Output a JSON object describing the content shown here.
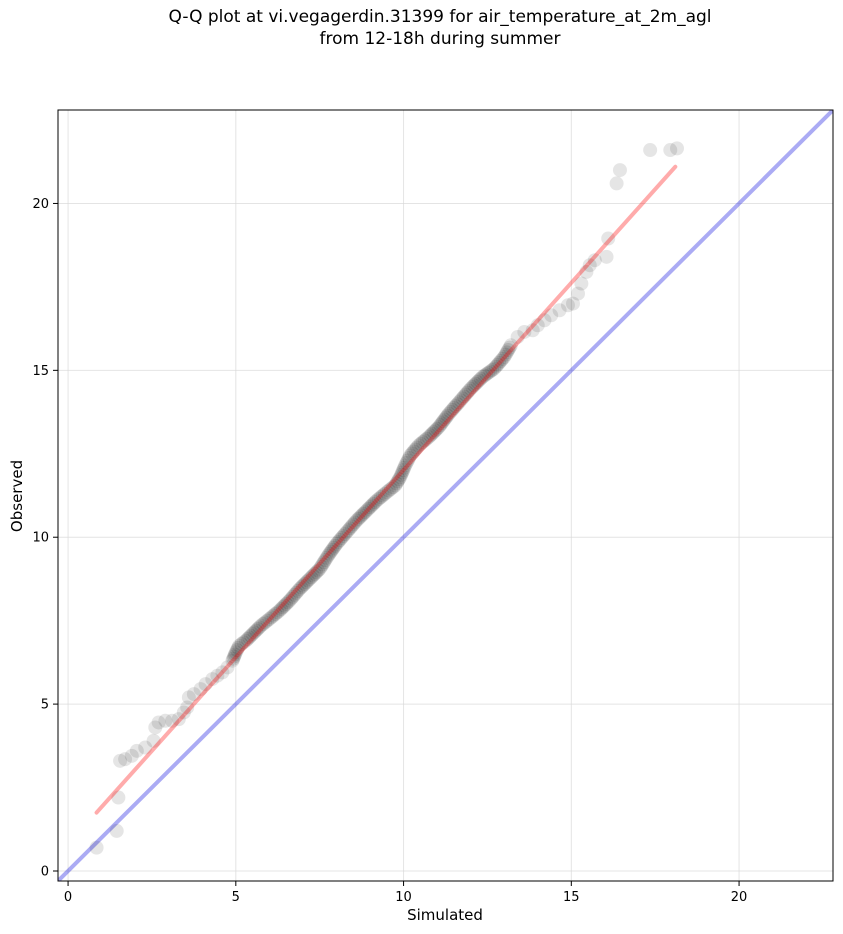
{
  "title": {
    "line1": "Q-Q plot at vi.vegagerdin.31399 for air_temperature_at_2m_agl",
    "line2": "from 12-18h during summer"
  },
  "colors": {
    "points": "#000000",
    "fit_line": "#ff0000",
    "identity_line": "#0000dd",
    "grid": "#d9d9d9",
    "axes": "#000000"
  },
  "chart_data": {
    "type": "scatter",
    "title": "Q-Q plot at vi.vegagerdin.31399 for air_temperature_at_2m_agl\nfrom 12-18h during summer",
    "xlabel": "Simulated",
    "ylabel": "Observed",
    "xlim": [
      -0.3,
      22.8
    ],
    "ylim": [
      -0.3,
      22.8
    ],
    "xticks": [
      0,
      5,
      10,
      15,
      20
    ],
    "yticks": [
      0,
      5,
      10,
      15,
      20
    ],
    "xtick_labels": [
      "0",
      "5",
      "10",
      "15",
      "20"
    ],
    "ytick_labels": [
      "0",
      "5",
      "10",
      "15",
      "20"
    ],
    "grid": true,
    "legend": "none",
    "series": [
      {
        "kind": "scatter",
        "points": [
          [
            0.85,
            0.7
          ],
          [
            1.45,
            1.2
          ],
          [
            1.5,
            2.2
          ],
          [
            1.55,
            3.3
          ],
          [
            1.7,
            3.35
          ],
          [
            1.9,
            3.45
          ],
          [
            2.05,
            3.6
          ],
          [
            2.3,
            3.7
          ],
          [
            2.55,
            3.9
          ],
          [
            2.6,
            4.3
          ],
          [
            2.7,
            4.45
          ],
          [
            2.9,
            4.5
          ],
          [
            3.1,
            4.5
          ],
          [
            3.3,
            4.55
          ],
          [
            3.45,
            4.75
          ],
          [
            3.55,
            4.9
          ],
          [
            3.6,
            5.2
          ],
          [
            3.75,
            5.3
          ],
          [
            3.95,
            5.45
          ],
          [
            4.1,
            5.6
          ],
          [
            4.3,
            5.75
          ],
          [
            4.45,
            5.85
          ],
          [
            4.6,
            5.95
          ],
          [
            4.75,
            6.1
          ],
          [
            4.9,
            6.3
          ],
          [
            5.0,
            6.55
          ],
          [
            5.1,
            6.75
          ],
          [
            5.3,
            6.9
          ],
          [
            5.5,
            7.1
          ],
          [
            5.75,
            7.35
          ],
          [
            6.0,
            7.55
          ],
          [
            6.3,
            7.8
          ],
          [
            6.6,
            8.1
          ],
          [
            6.9,
            8.45
          ],
          [
            7.2,
            8.75
          ],
          [
            7.5,
            9.05
          ],
          [
            7.75,
            9.45
          ],
          [
            8.0,
            9.8
          ],
          [
            8.3,
            10.15
          ],
          [
            8.6,
            10.5
          ],
          [
            8.9,
            10.8
          ],
          [
            9.2,
            11.1
          ],
          [
            9.5,
            11.35
          ],
          [
            9.75,
            11.55
          ],
          [
            9.9,
            11.8
          ],
          [
            10.05,
            12.15
          ],
          [
            10.2,
            12.45
          ],
          [
            10.45,
            12.75
          ],
          [
            10.75,
            13.0
          ],
          [
            11.05,
            13.3
          ],
          [
            11.35,
            13.7
          ],
          [
            11.7,
            14.1
          ],
          [
            12.0,
            14.45
          ],
          [
            12.35,
            14.8
          ],
          [
            12.7,
            15.05
          ],
          [
            13.0,
            15.4
          ],
          [
            13.2,
            15.75
          ],
          [
            13.4,
            16.0
          ],
          [
            13.6,
            16.15
          ],
          [
            13.85,
            16.2
          ],
          [
            14.0,
            16.35
          ],
          [
            14.2,
            16.5
          ],
          [
            14.4,
            16.65
          ],
          [
            14.65,
            16.8
          ],
          [
            14.9,
            16.95
          ],
          [
            15.05,
            17.0
          ],
          [
            15.2,
            17.3
          ],
          [
            15.3,
            17.6
          ],
          [
            15.45,
            17.95
          ],
          [
            15.55,
            18.15
          ],
          [
            15.7,
            18.3
          ],
          [
            16.05,
            18.4
          ],
          [
            16.1,
            18.95
          ],
          [
            16.35,
            20.6
          ],
          [
            16.45,
            21.0
          ],
          [
            17.35,
            21.6
          ],
          [
            17.95,
            21.6
          ],
          [
            18.15,
            21.65
          ]
        ]
      },
      {
        "kind": "fit_line",
        "x": [
          0.85,
          18.1
        ],
        "y": [
          1.75,
          21.1
        ]
      },
      {
        "kind": "identity_line",
        "x": [
          -0.3,
          22.8
        ],
        "y": [
          -0.3,
          22.8
        ]
      }
    ]
  }
}
